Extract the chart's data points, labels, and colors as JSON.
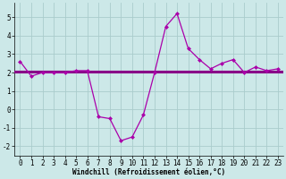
{
  "x_hours": [
    0,
    1,
    2,
    3,
    4,
    5,
    6,
    7,
    8,
    9,
    10,
    11,
    12,
    13,
    14,
    15,
    16,
    17,
    18,
    19,
    20,
    21,
    22,
    23
  ],
  "windchill_line": [
    2.6,
    1.8,
    2.0,
    2.0,
    2.0,
    2.1,
    2.1,
    -0.4,
    -0.5,
    -1.7,
    -1.5,
    -0.3,
    2.0,
    4.5,
    5.2,
    3.3,
    2.7,
    2.2,
    2.5,
    2.7,
    2.0,
    2.3,
    2.1,
    2.2
  ],
  "flat_line1_y": 2.0,
  "flat_line2_y": 2.1,
  "bg_color": "#cce8e8",
  "grid_color": "#aacccc",
  "line_color": "#aa00aa",
  "line_color2": "#880088",
  "xlabel": "Windchill (Refroidissement éolien,°C)",
  "ylim": [
    -2.5,
    5.8
  ],
  "xlim": [
    -0.5,
    23.5
  ],
  "yticks": [
    -2,
    -1,
    0,
    1,
    2,
    3,
    4,
    5
  ],
  "xticks": [
    0,
    1,
    2,
    3,
    4,
    5,
    6,
    7,
    8,
    9,
    10,
    11,
    12,
    13,
    14,
    15,
    16,
    17,
    18,
    19,
    20,
    21,
    22,
    23
  ],
  "xlabel_fontsize": 5.5,
  "tick_fontsize": 5.5,
  "linewidth": 0.9,
  "markersize": 2.5
}
